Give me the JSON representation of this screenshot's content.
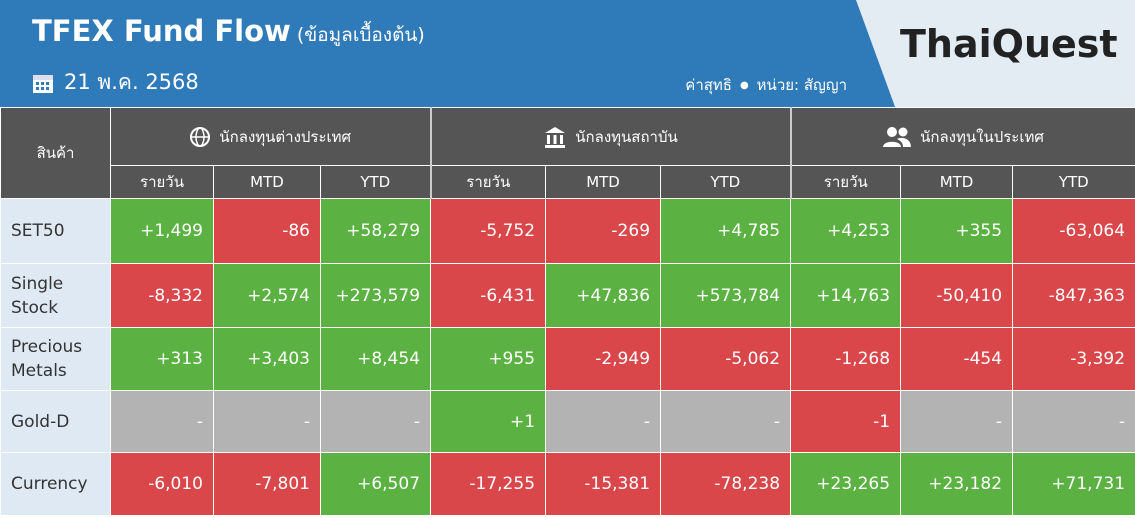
{
  "header": {
    "title": "TFEX Fund Flow",
    "subtitle": "(ข้อมูลเบื้องต้น)",
    "date": "21 พ.ค. 2568",
    "net_label": "ค่าสุทธิ",
    "unit": "หน่วย: สัญญา",
    "logo": "ThaiQuest"
  },
  "table": {
    "product_header": "สินค้า",
    "groups": [
      "นักลงทุนต่างประเทศ",
      "นักลงทุนสถาบัน",
      "นักลงทุนในประเทศ"
    ],
    "subheaders": [
      "รายวัน",
      "MTD",
      "YTD"
    ],
    "rows": [
      {
        "label": "SET50",
        "cells": [
          "+1,499",
          "-86",
          "+58,279",
          "-5,752",
          "-269",
          "+4,785",
          "+4,253",
          "+355",
          "-63,064"
        ]
      },
      {
        "label": "Single Stock",
        "cells": [
          "-8,332",
          "+2,574",
          "+273,579",
          "-6,431",
          "+47,836",
          "+573,784",
          "+14,763",
          "-50,410",
          "-847,363"
        ]
      },
      {
        "label": "Precious Metals",
        "cells": [
          "+313",
          "+3,403",
          "+8,454",
          "+955",
          "-2,949",
          "-5,062",
          "-1,268",
          "-454",
          "-3,392"
        ]
      },
      {
        "label": "Gold-D",
        "cells": [
          "-",
          "-",
          "-",
          "+1",
          "-",
          "-",
          "-1",
          "-",
          "-"
        ]
      },
      {
        "label": "Currency",
        "cells": [
          "-6,010",
          "-7,801",
          "+6,507",
          "-17,255",
          "-15,381",
          "-78,238",
          "+23,265",
          "+23,182",
          "+71,731"
        ]
      }
    ]
  }
}
